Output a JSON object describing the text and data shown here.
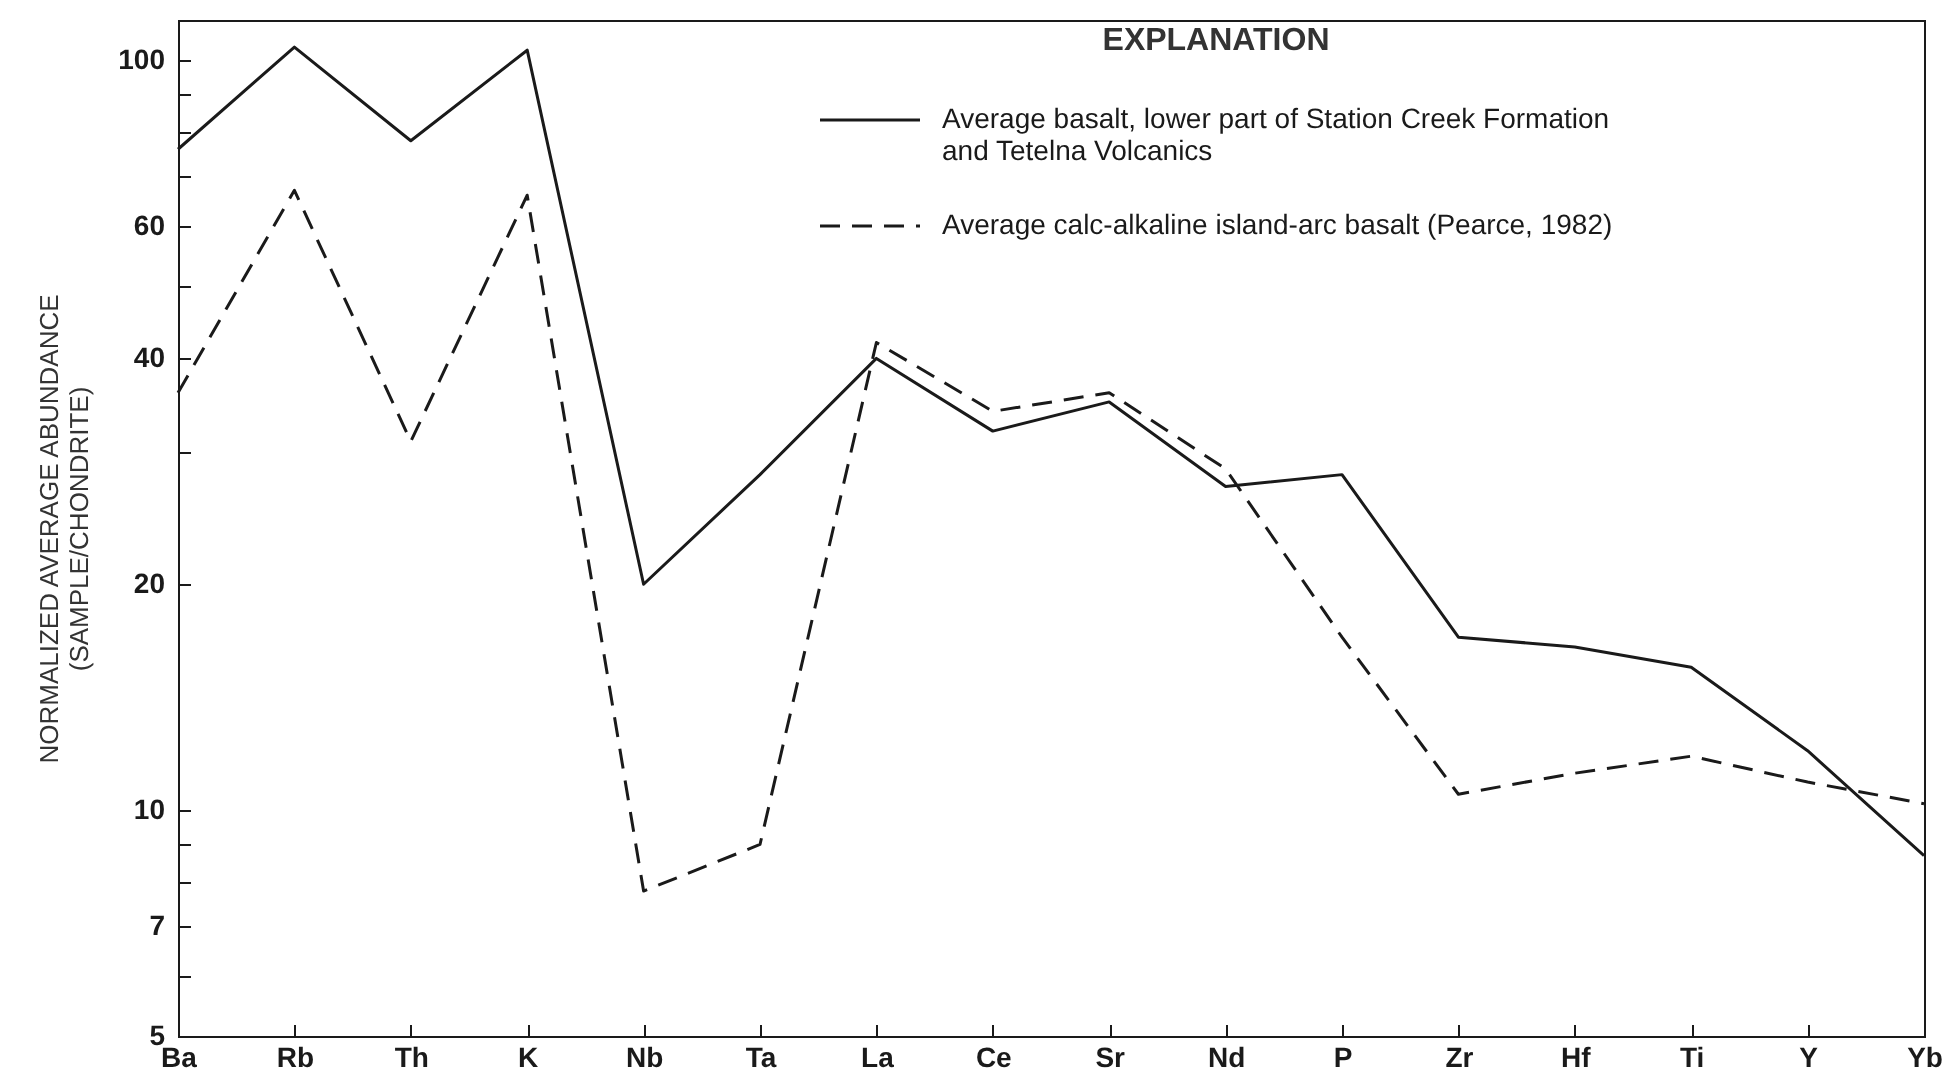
{
  "chart_data": {
    "type": "line",
    "ylabel": "NORMALIZED AVERAGE ABUNDANCE (SAMPLE/CHONDRITE)",
    "legend_title": "EXPLANATION",
    "categories": [
      "Ba",
      "Rb",
      "Th",
      "K",
      "Nb",
      "Ta",
      "La",
      "Ce",
      "Sr",
      "Nd",
      "P",
      "Zr",
      "Hf",
      "Ti",
      "Y",
      "Yb"
    ],
    "series": [
      {
        "name": "Average basalt, lower part of Station Creek Formation and Tetelna Volcanics",
        "color": "#1a1a1a",
        "line_style": "solid",
        "values": [
          76,
          104,
          78,
          103,
          20,
          28,
          40,
          32,
          35,
          27,
          28,
          17,
          16.5,
          15.5,
          12,
          8.7
        ]
      },
      {
        "name": "Average calc-alkaline island-arc basalt (Pearce, 1982)",
        "color": "#1a1a1a",
        "line_style": "dashed",
        "values": [
          36,
          67,
          31,
          66,
          7.8,
          9,
          42,
          34,
          36,
          28.5,
          17,
          10.5,
          11.2,
          11.8,
          10.9,
          10.2
        ]
      }
    ],
    "log": true,
    "ylim": [
      5,
      113
    ],
    "yticks": [
      5,
      {
        "value": 6,
        "label": null
      },
      7,
      {
        "value": 8,
        "label": null
      },
      {
        "value": 9,
        "label": null
      },
      10,
      20,
      {
        "value": 30,
        "label": null
      },
      40,
      {
        "value": 50,
        "label": null
      },
      60,
      {
        "value": 70,
        "label": null
      },
      {
        "value": 80,
        "label": null
      },
      {
        "value": 90,
        "label": null
      },
      100
    ],
    "grid": false,
    "legend": "top right"
  }
}
